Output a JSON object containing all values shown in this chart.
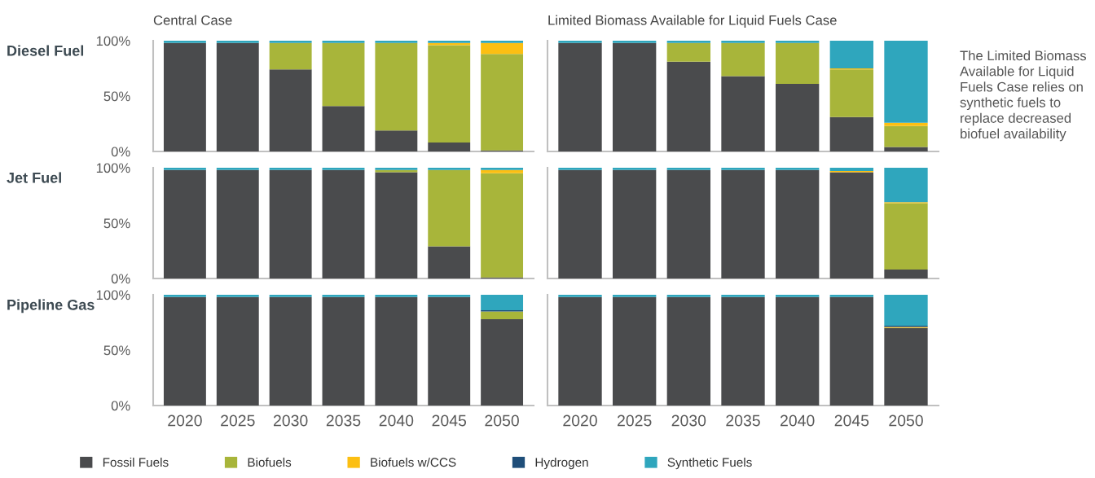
{
  "chart_data": [
    {
      "type": "bar",
      "stacked": true,
      "title": "Central Case",
      "ylabel": "Diesel Fuel",
      "categories": [
        "2020",
        "2025",
        "2030",
        "2035",
        "2040",
        "2045",
        "2050"
      ],
      "ylim": [
        0,
        1
      ],
      "yticks": [
        {
          "value": 0,
          "label": "0%"
        },
        {
          "value": 0.5,
          "label": "50%"
        },
        {
          "value": 1,
          "label": "100%"
        }
      ],
      "tick_labels": "y",
      "legend": "bottom",
      "series": [
        {
          "name": "Fossil Fuels",
          "color": "#4a4b4d",
          "values": [
            0.98,
            0.98,
            0.74,
            0.41,
            0.19,
            0.08,
            0.01
          ]
        },
        {
          "name": "Biofuels",
          "color": "#a8b53a",
          "values": [
            0,
            0,
            0.24,
            0.57,
            0.79,
            0.88,
            0.87
          ]
        },
        {
          "name": "Biofuels w/CCS",
          "color": "#fcbf12",
          "values": [
            0,
            0,
            0,
            0,
            0,
            0.02,
            0.1
          ]
        },
        {
          "name": "Hydrogen",
          "color": "#1f4e79",
          "values": [
            0,
            0,
            0,
            0,
            0,
            0,
            0
          ]
        },
        {
          "name": "Synthetic Fuels",
          "color": "#2fa6bd",
          "values": [
            0.02,
            0.02,
            0.02,
            0.02,
            0.02,
            0.02,
            0.02
          ]
        }
      ]
    },
    {
      "type": "bar",
      "stacked": true,
      "title": "Limited Biomass Available for Liquid Fuels Case",
      "categories": [
        "2020",
        "2025",
        "2030",
        "2035",
        "2040",
        "2045",
        "2050"
      ],
      "ylim": [
        0,
        1
      ],
      "tick_labels": false,
      "annotations": [
        "The Limited Biomass Available for Liquid Fuels Case relies on synthetic fuels to replace decreased biofuel availability"
      ],
      "series": [
        {
          "color": "#4a4b4d",
          "values": [
            0.98,
            0.98,
            0.81,
            0.68,
            0.61,
            0.31,
            0.04
          ]
        },
        {
          "color": "#a8b53a",
          "values": [
            0,
            0,
            0.17,
            0.3,
            0.37,
            0.43,
            0.19
          ]
        },
        {
          "color": "#fcbf12",
          "values": [
            0,
            0,
            0,
            0,
            0,
            0.01,
            0.03
          ]
        },
        {
          "color": "#1f4e79",
          "values": [
            0,
            0,
            0,
            0,
            0,
            0,
            0
          ]
        },
        {
          "color": "#2fa6bd",
          "values": [
            0.02,
            0.02,
            0.02,
            0.02,
            0.02,
            0.25,
            0.74
          ]
        }
      ]
    },
    {
      "type": "bar",
      "stacked": true,
      "ylabel": "Jet Fuel",
      "categories": [
        "2020",
        "2025",
        "2030",
        "2035",
        "2040",
        "2045",
        "2050"
      ],
      "ylim": [
        0,
        1
      ],
      "yticks": [
        {
          "value": 0,
          "label": "0%"
        },
        {
          "value": 0.5,
          "label": "50%"
        },
        {
          "value": 1,
          "label": "100%"
        }
      ],
      "tick_labels": "y",
      "series": [
        {
          "color": "#4a4b4d",
          "values": [
            0.98,
            0.98,
            0.98,
            0.98,
            0.96,
            0.29,
            0.01
          ]
        },
        {
          "color": "#a8b53a",
          "values": [
            0,
            0,
            0,
            0,
            0.02,
            0.69,
            0.94
          ]
        },
        {
          "color": "#fcbf12",
          "values": [
            0,
            0,
            0,
            0,
            0,
            0,
            0.03
          ]
        },
        {
          "color": "#1f4e79",
          "values": [
            0,
            0,
            0,
            0,
            0,
            0,
            0
          ]
        },
        {
          "color": "#2fa6bd",
          "values": [
            0.02,
            0.02,
            0.02,
            0.02,
            0.02,
            0.02,
            0.02
          ]
        }
      ]
    },
    {
      "type": "bar",
      "stacked": true,
      "categories": [
        "2020",
        "2025",
        "2030",
        "2035",
        "2040",
        "2045",
        "2050"
      ],
      "ylim": [
        0,
        1
      ],
      "tick_labels": false,
      "series": [
        {
          "color": "#4a4b4d",
          "values": [
            0.98,
            0.98,
            0.98,
            0.98,
            0.98,
            0.96,
            0.08
          ]
        },
        {
          "color": "#a8b53a",
          "values": [
            0,
            0,
            0,
            0,
            0,
            0,
            0.6
          ]
        },
        {
          "color": "#fcbf12",
          "values": [
            0,
            0,
            0,
            0,
            0,
            0.01,
            0.01
          ]
        },
        {
          "color": "#1f4e79",
          "values": [
            0,
            0,
            0,
            0,
            0,
            0,
            0
          ]
        },
        {
          "color": "#2fa6bd",
          "values": [
            0.02,
            0.02,
            0.02,
            0.02,
            0.02,
            0.03,
            0.31
          ]
        }
      ]
    },
    {
      "type": "bar",
      "stacked": true,
      "ylabel": "Pipeline Gas",
      "categories": [
        "2020",
        "2025",
        "2030",
        "2035",
        "2040",
        "2045",
        "2050"
      ],
      "ylim": [
        0,
        1
      ],
      "yticks": [
        {
          "value": 0,
          "label": "0%"
        },
        {
          "value": 0.5,
          "label": "50%"
        },
        {
          "value": 1,
          "label": "100%"
        }
      ],
      "series": [
        {
          "color": "#4a4b4d",
          "values": [
            0.98,
            0.98,
            0.98,
            0.98,
            0.98,
            0.98,
            0.78
          ]
        },
        {
          "color": "#a8b53a",
          "values": [
            0,
            0,
            0,
            0,
            0,
            0,
            0.07
          ]
        },
        {
          "color": "#fcbf12",
          "values": [
            0,
            0,
            0,
            0,
            0,
            0,
            0
          ]
        },
        {
          "color": "#1f4e79",
          "values": [
            0,
            0,
            0,
            0,
            0,
            0,
            0.01
          ]
        },
        {
          "color": "#2fa6bd",
          "values": [
            0.02,
            0.02,
            0.02,
            0.02,
            0.02,
            0.02,
            0.14
          ]
        }
      ]
    },
    {
      "type": "bar",
      "stacked": true,
      "categories": [
        "2020",
        "2025",
        "2030",
        "2035",
        "2040",
        "2045",
        "2050"
      ],
      "ylim": [
        0,
        1
      ],
      "tick_labels": "x",
      "series": [
        {
          "color": "#4a4b4d",
          "values": [
            0.98,
            0.98,
            0.98,
            0.98,
            0.98,
            0.98,
            0.7
          ]
        },
        {
          "color": "#a8b53a",
          "values": [
            0,
            0,
            0,
            0,
            0,
            0,
            0
          ]
        },
        {
          "color": "#fcbf12",
          "values": [
            0,
            0,
            0,
            0,
            0,
            0,
            0.01
          ]
        },
        {
          "color": "#1f4e79",
          "values": [
            0,
            0,
            0,
            0,
            0,
            0,
            0.01
          ]
        },
        {
          "color": "#2fa6bd",
          "values": [
            0.02,
            0.02,
            0.02,
            0.02,
            0.02,
            0.02,
            0.28
          ]
        }
      ]
    }
  ]
}
